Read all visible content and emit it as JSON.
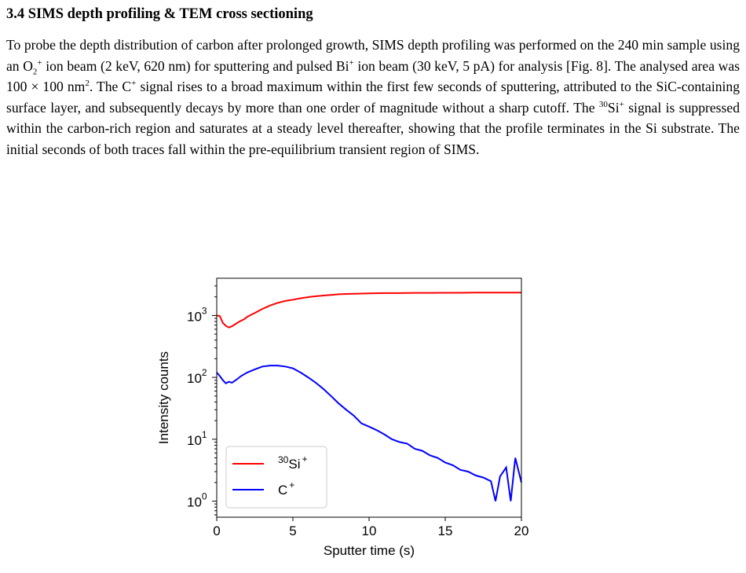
{
  "section": {
    "heading": "3.4 SIMS depth profiling & TEM cross sectioning",
    "paragraph": [
      {
        "t": "To probe the depth distribution of carbon after prolonged growth, SIMS depth profiling was performed on the 240 min sample using an O"
      },
      {
        "t": "2",
        "sub": true
      },
      {
        "t": "+",
        "sup": true
      },
      {
        "t": " ion beam (2 keV, 620 nm) for sputtering and pulsed Bi"
      },
      {
        "t": "+",
        "sup": true
      },
      {
        "t": " ion beam (30 keV, 5 pA) for analysis [Fig. 8]. The analysed area was 100 × 100 nm"
      },
      {
        "t": "2",
        "sup": true
      },
      {
        "t": ". The C"
      },
      {
        "t": "+",
        "sup": true
      },
      {
        "t": " signal rises to a broad maximum within the first few seconds of sputtering, attributed to the SiC-containing surface layer, and subsequently decays by more than one order of magnitude without a sharp cutoff. The "
      },
      {
        "t": "30",
        "sup": true
      },
      {
        "t": "Si"
      },
      {
        "t": "+",
        "sup": true
      },
      {
        "t": " signal is suppressed within the carbon-rich region and saturates at a steady level thereafter, showing that the profile terminates in the Si substrate. The initial seconds of both traces fall within the pre-equilibrium transient region of SIMS."
      }
    ]
  },
  "chart_data": {
    "type": "line",
    "xlabel": "Sputter time (s)",
    "ylabel": "Intensity counts",
    "xlim": [
      0,
      20
    ],
    "ylim": [
      0.55,
      4000
    ],
    "yscale": "log",
    "xticks": [
      "0",
      "5",
      "10",
      "15",
      "20"
    ],
    "yticks": [
      {
        "value": 1,
        "base": "10",
        "exp": "0"
      },
      {
        "value": 10,
        "base": "10",
        "exp": "1"
      },
      {
        "value": 100,
        "base": "10",
        "exp": "2"
      },
      {
        "value": 1000,
        "base": "10",
        "exp": "3"
      }
    ],
    "legend_position": "bottom-left",
    "series": [
      {
        "name": "Si",
        "name_pre_sup": "30",
        "name_sup": "+",
        "color": "#ff0000",
        "x": [
          0,
          0.2,
          0.4,
          0.6,
          0.8,
          1.0,
          1.2,
          1.5,
          1.8,
          2.0,
          2.5,
          3.0,
          3.5,
          4.0,
          4.5,
          5.0,
          5.5,
          6.0,
          6.5,
          7.0,
          7.5,
          8.0,
          8.5,
          9.0,
          10,
          11,
          12,
          13,
          14,
          15,
          16,
          17,
          18,
          19,
          20
        ],
        "y": [
          1000,
          980,
          760,
          680,
          640,
          670,
          720,
          800,
          870,
          950,
          1100,
          1280,
          1450,
          1600,
          1720,
          1800,
          1900,
          1980,
          2050,
          2100,
          2150,
          2200,
          2230,
          2250,
          2280,
          2300,
          2300,
          2320,
          2320,
          2330,
          2330,
          2340,
          2340,
          2350,
          2350
        ]
      },
      {
        "name": "C",
        "name_sup": "+",
        "color": "#0000ff",
        "x": [
          0,
          0.2,
          0.4,
          0.6,
          0.8,
          1.0,
          1.3,
          1.6,
          2.0,
          2.5,
          3.0,
          3.5,
          4.0,
          4.5,
          5.0,
          5.5,
          6.0,
          6.5,
          7.0,
          7.5,
          8.0,
          8.5,
          9.0,
          9.5,
          10.0,
          10.5,
          11.0,
          11.5,
          12.0,
          12.5,
          13.0,
          13.5,
          14.0,
          14.5,
          15.0,
          15.5,
          16.0,
          16.5,
          17.0,
          17.5,
          18.0,
          18.3,
          18.6,
          19.0,
          19.3,
          19.6,
          20.0
        ],
        "y": [
          120,
          105,
          90,
          80,
          85,
          82,
          92,
          105,
          120,
          135,
          150,
          155,
          155,
          150,
          140,
          120,
          100,
          82,
          65,
          50,
          38,
          30,
          24,
          18,
          16,
          14,
          12,
          10,
          9,
          8.5,
          7,
          6.5,
          5.5,
          5,
          4.2,
          3.8,
          3.2,
          3,
          2.6,
          2.4,
          2.1,
          1,
          2.5,
          3.5,
          1,
          5,
          2
        ]
      }
    ]
  }
}
